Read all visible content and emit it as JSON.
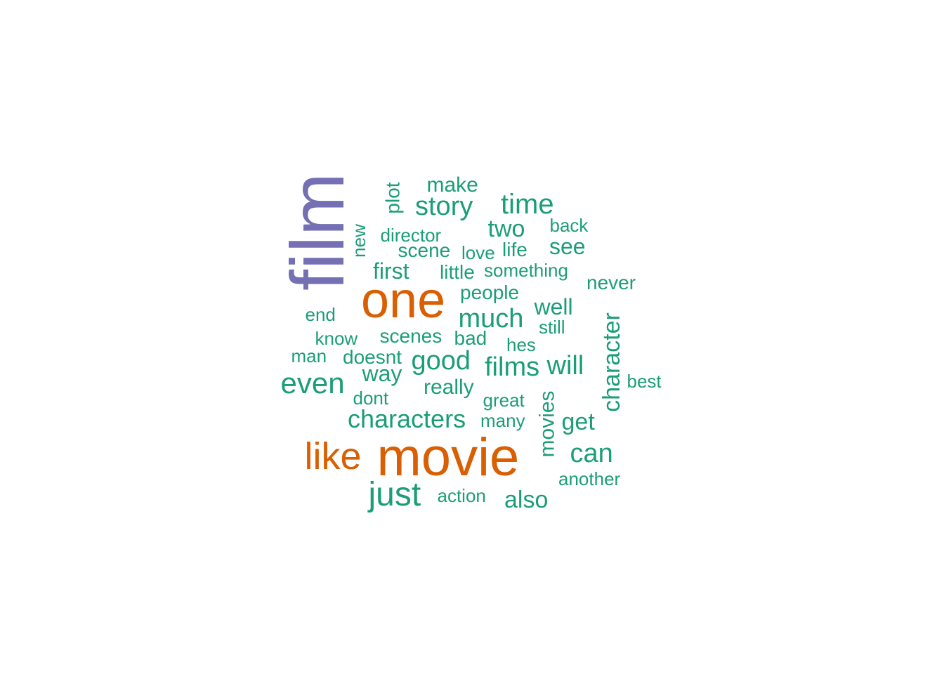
{
  "palette": {
    "tier_large": "#7570b3",
    "tier_medium": "#d95f02",
    "tier_small": "#1b9e77"
  },
  "words": [
    {
      "text": "film",
      "tier": "large",
      "vertical": true
    },
    {
      "text": "one",
      "tier": "medium",
      "vertical": false
    },
    {
      "text": "movie",
      "tier": "medium",
      "vertical": false
    },
    {
      "text": "like",
      "tier": "medium",
      "vertical": false
    },
    {
      "text": "even",
      "tier": "small",
      "vertical": false
    },
    {
      "text": "just",
      "tier": "small",
      "vertical": false
    },
    {
      "text": "story",
      "tier": "small",
      "vertical": false
    },
    {
      "text": "time",
      "tier": "small",
      "vertical": false
    },
    {
      "text": "much",
      "tier": "small",
      "vertical": false
    },
    {
      "text": "good",
      "tier": "small",
      "vertical": false
    },
    {
      "text": "films",
      "tier": "small",
      "vertical": false
    },
    {
      "text": "will",
      "tier": "small",
      "vertical": false
    },
    {
      "text": "characters",
      "tier": "small",
      "vertical": false
    },
    {
      "text": "can",
      "tier": "small",
      "vertical": false
    },
    {
      "text": "character",
      "tier": "small",
      "vertical": true
    },
    {
      "text": "make",
      "tier": "small",
      "vertical": false
    },
    {
      "text": "two",
      "tier": "small",
      "vertical": false
    },
    {
      "text": "see",
      "tier": "small",
      "vertical": false
    },
    {
      "text": "first",
      "tier": "small",
      "vertical": false
    },
    {
      "text": "well",
      "tier": "small",
      "vertical": false
    },
    {
      "text": "get",
      "tier": "small",
      "vertical": false
    },
    {
      "text": "also",
      "tier": "small",
      "vertical": false
    },
    {
      "text": "way",
      "tier": "small",
      "vertical": false
    },
    {
      "text": "really",
      "tier": "small",
      "vertical": false
    },
    {
      "text": "movies",
      "tier": "small",
      "vertical": true
    },
    {
      "text": "plot",
      "tier": "small",
      "vertical": true
    },
    {
      "text": "scene",
      "tier": "small",
      "vertical": false
    },
    {
      "text": "life",
      "tier": "small",
      "vertical": false
    },
    {
      "text": "little",
      "tier": "small",
      "vertical": false
    },
    {
      "text": "people",
      "tier": "small",
      "vertical": false
    },
    {
      "text": "never",
      "tier": "small",
      "vertical": false
    },
    {
      "text": "scenes",
      "tier": "small",
      "vertical": false
    },
    {
      "text": "bad",
      "tier": "small",
      "vertical": false
    },
    {
      "text": "doesnt",
      "tier": "small",
      "vertical": false
    },
    {
      "text": "new",
      "tier": "small",
      "vertical": true
    },
    {
      "text": "director",
      "tier": "small",
      "vertical": false
    },
    {
      "text": "love",
      "tier": "small",
      "vertical": false
    },
    {
      "text": "back",
      "tier": "small",
      "vertical": false
    },
    {
      "text": "something",
      "tier": "small",
      "vertical": false
    },
    {
      "text": "know",
      "tier": "small",
      "vertical": false
    },
    {
      "text": "man",
      "tier": "small",
      "vertical": false
    },
    {
      "text": "end",
      "tier": "small",
      "vertical": false
    },
    {
      "text": "still",
      "tier": "small",
      "vertical": false
    },
    {
      "text": "hes",
      "tier": "small",
      "vertical": false
    },
    {
      "text": "dont",
      "tier": "small",
      "vertical": false
    },
    {
      "text": "great",
      "tier": "small",
      "vertical": false
    },
    {
      "text": "many",
      "tier": "small",
      "vertical": false
    },
    {
      "text": "best",
      "tier": "small",
      "vertical": false
    },
    {
      "text": "another",
      "tier": "small",
      "vertical": false
    },
    {
      "text": "action",
      "tier": "small",
      "vertical": false
    }
  ]
}
